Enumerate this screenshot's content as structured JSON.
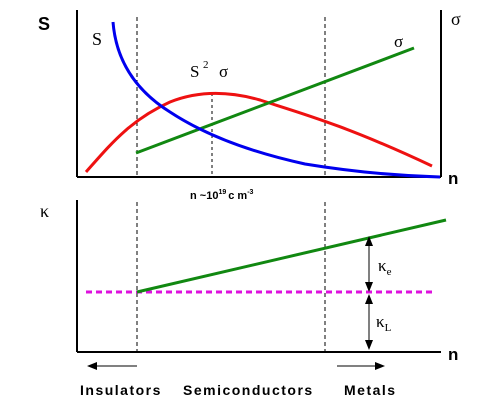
{
  "top_panel": {
    "y_axis_left_label": "S",
    "y_axis_right_label": "σ",
    "x_axis_label": "n",
    "curve_labels": {
      "seebeck": "S",
      "power_factor_base": "S",
      "power_factor_exp": "2",
      "power_factor_sigma": "σ",
      "conductivity": "σ"
    },
    "carrier_label": {
      "prefix": "n ~10",
      "exponent": "19",
      "unit": "c m",
      "unit_exp": "-3"
    }
  },
  "bottom_panel": {
    "y_axis_label": "κ",
    "x_axis_label": "n",
    "kappa_e": {
      "symbol": "κ",
      "sub": "e"
    },
    "kappa_L": {
      "symbol": "κ",
      "sub": "L"
    }
  },
  "regions": {
    "insulators": "Insulators",
    "semiconductors": "Semiconductors",
    "metals": "Metals"
  },
  "colors": {
    "seebeck": "#0000ee",
    "power_factor": "#ee1111",
    "conductivity": "#118811",
    "lattice": "#dd11dd",
    "axes": "#000000"
  }
}
